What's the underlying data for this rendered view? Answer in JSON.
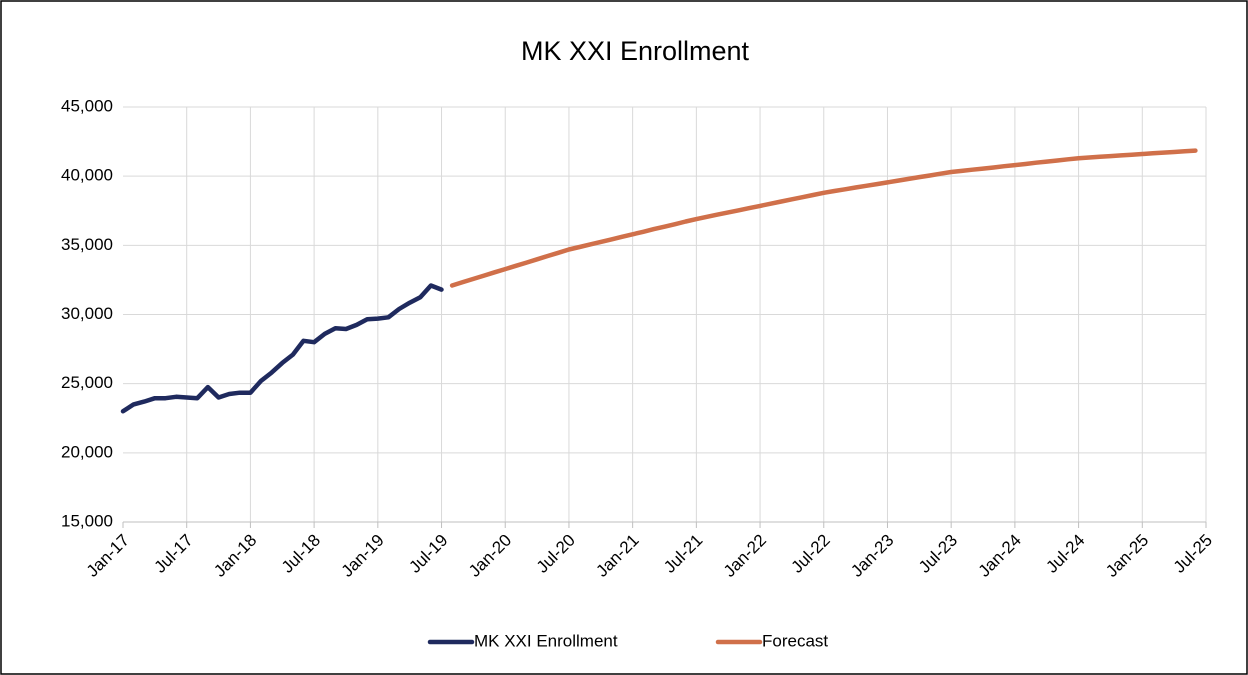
{
  "chart_data": {
    "type": "line",
    "title": "MK XXI Enrollment",
    "categories": [
      "Jan-17",
      null,
      null,
      null,
      null,
      null,
      "Jul-17",
      null,
      null,
      null,
      null,
      null,
      "Jan-18",
      null,
      null,
      null,
      null,
      null,
      "Jul-18",
      null,
      null,
      null,
      null,
      null,
      "Jan-19",
      null,
      null,
      null,
      null,
      null,
      "Jul-19",
      null,
      null,
      null,
      null,
      null,
      "Jan-20",
      null,
      null,
      null,
      null,
      null,
      "Jul-20",
      null,
      null,
      null,
      null,
      null,
      "Jan-21",
      null,
      null,
      null,
      null,
      null,
      "Jul-21",
      null,
      null,
      null,
      null,
      null,
      "Jan-22",
      null,
      null,
      null,
      null,
      null,
      "Jul-22",
      null,
      null,
      null,
      null,
      null,
      "Jan-23",
      null,
      null,
      null,
      null,
      null,
      "Jul-23",
      null,
      null,
      null,
      null,
      null,
      "Jan-24",
      null,
      null,
      null,
      null,
      null,
      "Jul-24",
      null,
      null,
      null,
      null,
      null,
      "Jan-25",
      null,
      null,
      null,
      null,
      null,
      "Jul-25"
    ],
    "series": [
      {
        "name": "MK XXI Enrollment",
        "color": "#1f2a5e",
        "values": [
          23000,
          23500,
          23700,
          23950,
          23950,
          24050,
          24000,
          23950,
          24750,
          24000,
          24250,
          24350,
          24350,
          25200,
          25800,
          26500,
          27100,
          28100,
          28000,
          28600,
          29000,
          28950,
          29250,
          29650,
          29700,
          29800,
          30400,
          30850,
          31250,
          32100,
          31800,
          null,
          null,
          null,
          null,
          null,
          null,
          null,
          null,
          null,
          null,
          null,
          null,
          null,
          null,
          null,
          null,
          null,
          null,
          null,
          null,
          null,
          null,
          null,
          null,
          null,
          null,
          null,
          null,
          null,
          null,
          null,
          null,
          null,
          null,
          null,
          null,
          null,
          null,
          null,
          null,
          null,
          null,
          null,
          null,
          null,
          null,
          null,
          null,
          null,
          null,
          null,
          null,
          null,
          null,
          null,
          null,
          null,
          null,
          null,
          null,
          null,
          null,
          null,
          null,
          null,
          null,
          null,
          null,
          null,
          null,
          null,
          null
        ]
      },
      {
        "name": "Forecast",
        "color": "#d0704a",
        "values": [
          null,
          null,
          null,
          null,
          null,
          null,
          null,
          null,
          null,
          null,
          null,
          null,
          null,
          null,
          null,
          null,
          null,
          null,
          null,
          null,
          null,
          null,
          null,
          null,
          null,
          null,
          null,
          null,
          null,
          null,
          null,
          32100,
          32340,
          32570,
          32810,
          33050,
          33280,
          33520,
          33750,
          33990,
          34230,
          34460,
          34700,
          34880,
          35070,
          35250,
          35430,
          35620,
          35800,
          35980,
          36170,
          36350,
          36530,
          36720,
          36900,
          37060,
          37220,
          37380,
          37530,
          37690,
          37850,
          38010,
          38170,
          38330,
          38480,
          38640,
          38800,
          38930,
          39050,
          39180,
          39300,
          39430,
          39550,
          39680,
          39800,
          39930,
          40050,
          40180,
          40300,
          40380,
          40470,
          40550,
          40630,
          40720,
          40800,
          40880,
          40970,
          41050,
          41130,
          41220,
          41300,
          41350,
          41400,
          41450,
          41500,
          41550,
          41600,
          41650,
          41700,
          41750,
          41800,
          41850,
          null
        ]
      }
    ],
    "ylim": [
      15000,
      45000
    ],
    "yticks": [
      {
        "value": 15000,
        "label": "15,000"
      },
      {
        "value": 20000,
        "label": "20,000"
      },
      {
        "value": 25000,
        "label": "25,000"
      },
      {
        "value": 30000,
        "label": "30,000"
      },
      {
        "value": 35000,
        "label": "35,000"
      },
      {
        "value": 40000,
        "label": "40,000"
      },
      {
        "value": 45000,
        "label": "45,000"
      }
    ],
    "grid": true,
    "legend": "bottom"
  }
}
